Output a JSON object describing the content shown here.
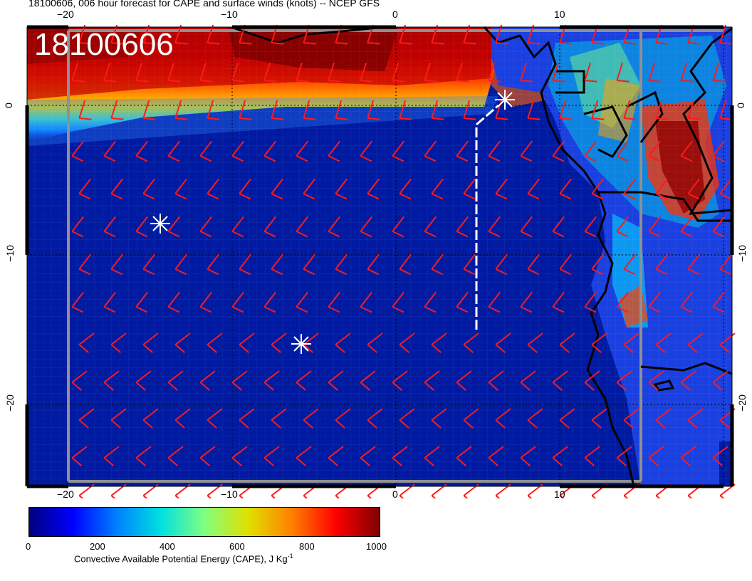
{
  "title": "18100606, 006 hour forecast for CAPE and surface winds (knots) -- NCEP GFS",
  "stamp": "18100606",
  "map": {
    "lon_range": [
      -22.5,
      20.5
    ],
    "lat_range": [
      -25,
      5
    ],
    "grid_lons": [
      -20,
      -10,
      0,
      10
    ],
    "grid_lats": [
      0,
      -10,
      -20
    ],
    "markers": [
      {
        "type": "asterisk",
        "lon": -14.5,
        "lat": -7.8
      },
      {
        "type": "asterisk",
        "lon": -5.8,
        "lat": -15.3
      },
      {
        "type": "asterisk",
        "lon": 6.7,
        "lat": 0.2
      }
    ],
    "white_track": [
      [
        5,
        -14.5
      ],
      [
        5,
        -1.2
      ],
      [
        6.5,
        0.2
      ]
    ],
    "colors": {
      "coast": "#000000",
      "barb": "#ff1a1a",
      "marker": "#ffffff",
      "grid": "#808080"
    }
  },
  "axis_labels": {
    "bottom": [
      "−20",
      "−10",
      "0",
      "10"
    ],
    "top": [
      "−20",
      "−10",
      "0",
      "10"
    ],
    "left": [
      "0",
      "−10",
      "−20"
    ],
    "right": [
      "0",
      "−10",
      "−20"
    ]
  },
  "colorbar": {
    "label": "Convective Available Potential Energy (CAPE), J Kg",
    "label_sup": "-1",
    "ticks": [
      "0",
      "200",
      "400",
      "600",
      "800",
      "1000"
    ],
    "stops": [
      "#000080",
      "#0000ff",
      "#0080ff",
      "#00e0e0",
      "#80ff80",
      "#e0e000",
      "#ff8000",
      "#ff0000",
      "#800000"
    ]
  }
}
